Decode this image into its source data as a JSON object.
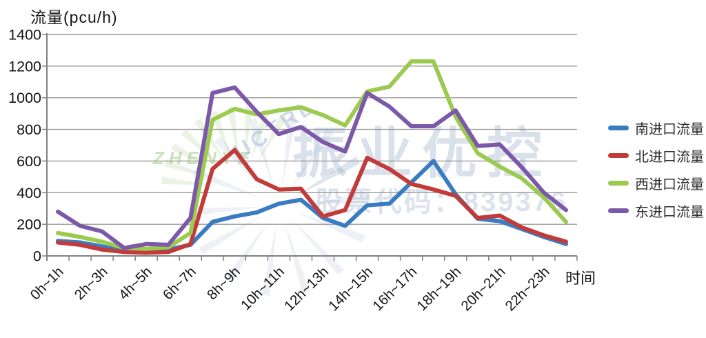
{
  "chart_data": {
    "type": "line",
    "title": "流量(pcu/h)",
    "ylabel": "流量(pcu/h)",
    "xlabel": "时间",
    "ylim": [
      0,
      1400
    ],
    "y_ticks": [
      0,
      200,
      400,
      600,
      800,
      1000,
      1200,
      1400
    ],
    "grid": "horizontal",
    "legend_position": "right",
    "n_points": 24,
    "x_labels_shown": [
      "0h~1h",
      "2h~3h",
      "4h~5h",
      "6h~7h",
      "8h~9h",
      "10h~11h",
      "12h~13h",
      "14h~15h",
      "16h~17h",
      "18h~19h",
      "20h~21h",
      "22h~23h"
    ],
    "x_label_point_indices": [
      0,
      2,
      4,
      6,
      8,
      10,
      12,
      14,
      16,
      18,
      20,
      22
    ],
    "series": [
      {
        "name": "南进口流量",
        "color": "#3A7CC1",
        "values": [
          95,
          85,
          60,
          35,
          40,
          40,
          70,
          215,
          250,
          275,
          330,
          355,
          240,
          190,
          320,
          330,
          465,
          600,
          390,
          235,
          220,
          170,
          120,
          75
        ]
      },
      {
        "name": "北进口流量",
        "color": "#C13B3B",
        "values": [
          85,
          70,
          40,
          25,
          20,
          25,
          75,
          550,
          670,
          485,
          420,
          425,
          250,
          290,
          620,
          550,
          455,
          420,
          380,
          240,
          255,
          180,
          130,
          90
        ]
      },
      {
        "name": "西进口流量",
        "color": "#9CCA4F",
        "values": [
          145,
          120,
          90,
          50,
          45,
          55,
          145,
          860,
          930,
          895,
          920,
          940,
          890,
          825,
          1040,
          1070,
          1230,
          1230,
          880,
          650,
          565,
          490,
          370,
          215
        ]
      },
      {
        "name": "东进口流量",
        "color": "#7C58A8",
        "values": [
          280,
          190,
          155,
          50,
          75,
          70,
          240,
          1030,
          1065,
          910,
          770,
          815,
          720,
          660,
          1030,
          945,
          820,
          820,
          920,
          695,
          705,
          560,
          400,
          290
        ]
      }
    ]
  },
  "watermark": {
    "main_text": "振业优控",
    "sub_text": "股票代码：839376",
    "logo_text_green": "ZHENYE",
    "logo_text_diag": "UCTRL",
    "main_color": "#8096b8",
    "green_color": "#8fbf6a",
    "burst_color": "#8ea6c8"
  },
  "axis_style": {
    "grid_color": "#9a9a9a",
    "axis_color": "#808080",
    "tick_label_color": "#141414"
  }
}
